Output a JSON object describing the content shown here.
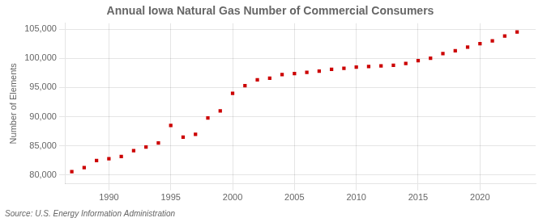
{
  "chart_data": {
    "type": "scatter",
    "title": "Annual Iowa Natural Gas Number of Commercial Consumers",
    "ylabel": "Number of Elements",
    "annotation": "Source: U.S. Energy Information Administration",
    "x": [
      1987,
      1988,
      1989,
      1990,
      1991,
      1992,
      1993,
      1994,
      1995,
      1996,
      1997,
      1998,
      1999,
      2000,
      2001,
      2002,
      2003,
      2004,
      2005,
      2006,
      2007,
      2008,
      2009,
      2010,
      2011,
      2012,
      2013,
      2014,
      2015,
      2016,
      2017,
      2018,
      2019,
      2020,
      2021,
      2022,
      2023
    ],
    "values": [
      80600,
      81300,
      82500,
      82800,
      83200,
      84200,
      84800,
      85500,
      88500,
      86500,
      87000,
      89800,
      91000,
      94000,
      95300,
      96300,
      96600,
      97200,
      97400,
      97600,
      97800,
      98100,
      98300,
      98500,
      98600,
      98700,
      98800,
      99100,
      99600,
      100000,
      100800,
      101300,
      101900,
      102500,
      103000,
      103800,
      104500
    ],
    "color": "#cc0000",
    "marker": "square",
    "xlim": [
      1986.5,
      2024.5
    ],
    "xticks": [
      1990,
      1995,
      2000,
      2005,
      2010,
      2015,
      2020
    ],
    "ylim": [
      78500,
      106000
    ],
    "yticks": [
      {
        "value": 80000,
        "label": "80,000"
      },
      {
        "value": 85000,
        "label": "85,000"
      },
      {
        "value": 90000,
        "label": "90,000"
      },
      {
        "value": 95000,
        "label": "95,000"
      },
      {
        "value": 100000,
        "label": "100,000"
      },
      {
        "value": 105000,
        "label": "105,000"
      }
    ],
    "grid": true
  }
}
